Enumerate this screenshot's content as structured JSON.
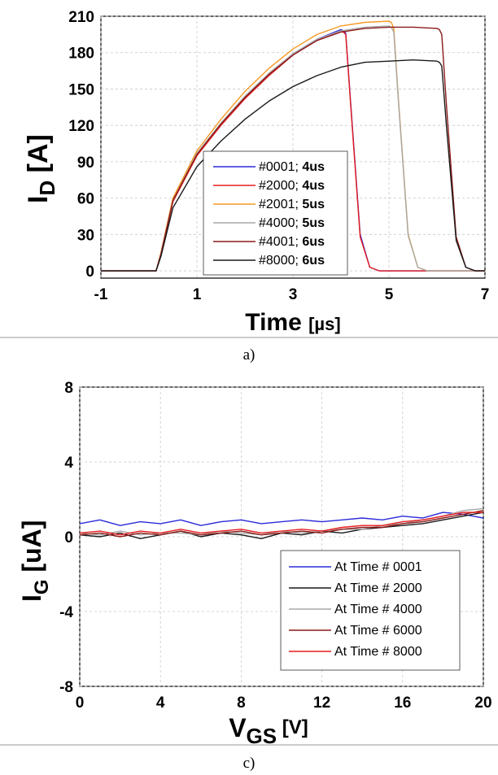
{
  "panel_a": {
    "caption": "a)",
    "ylabel_main": "I",
    "ylabel_sub": "D",
    "ylabel_unit": " [A]",
    "xlabel_main": "Time ",
    "xlabel_unit": "[µs]"
  },
  "panel_c": {
    "caption": "c)",
    "ylabel_main": "I",
    "ylabel_sub": "G",
    "ylabel_unit": " [uA]",
    "xlabel_main": "V",
    "xlabel_sub": "GS",
    "xlabel_unit": " [V]"
  },
  "chart_data": [
    {
      "type": "line",
      "panel": "a)",
      "xlabel": "Time [µs]",
      "ylabel": "ID [A]",
      "xlim": [
        -1,
        7
      ],
      "ylim": [
        -6,
        210
      ],
      "xticks": [
        "-1",
        "1",
        "3",
        "5",
        "7"
      ],
      "yticks": [
        "0",
        "30",
        "60",
        "90",
        "120",
        "150",
        "180",
        "210"
      ],
      "grid": true,
      "legend_position": "bottom-center",
      "series": [
        {
          "name": "#0001; ",
          "name_bold": "4us",
          "color": "#2b2bd9",
          "x": [
            -1,
            0.15,
            0.25,
            0.5,
            1.0,
            1.5,
            2.0,
            2.5,
            3.0,
            3.5,
            4.0,
            4.05,
            4.1,
            4.2,
            4.4,
            4.6,
            4.8,
            7
          ],
          "y": [
            0,
            0,
            14,
            58,
            96,
            121,
            143,
            162,
            179,
            191,
            199,
            198,
            196,
            140,
            30,
            3,
            0,
            0
          ]
        },
        {
          "name": "#2000; ",
          "name_bold": "4us",
          "color": "#e81c1c",
          "x": [
            -1,
            0.15,
            0.25,
            0.5,
            1.0,
            1.5,
            2.0,
            2.5,
            3.0,
            3.5,
            4.0,
            4.05,
            4.1,
            4.2,
            4.4,
            4.6,
            4.8,
            7
          ],
          "y": [
            0,
            0,
            13,
            57,
            95,
            120,
            142,
            161,
            178,
            190,
            198,
            197,
            195,
            138,
            28,
            3,
            0,
            0
          ]
        },
        {
          "name": "#2001; ",
          "name_bold": "5us",
          "color": "#f59a23",
          "x": [
            -1,
            0.15,
            0.25,
            0.5,
            1.0,
            1.5,
            2.0,
            2.5,
            3.0,
            3.5,
            4.0,
            4.5,
            5.0,
            5.05,
            5.1,
            5.2,
            5.4,
            5.6,
            5.8,
            7
          ],
          "y": [
            0,
            0,
            15,
            60,
            99,
            125,
            148,
            167,
            183,
            195,
            202,
            205,
            206,
            205,
            200,
            140,
            30,
            3,
            0,
            0
          ]
        },
        {
          "name": "#4000; ",
          "name_bold": "5us",
          "color": "#a8a8a8",
          "x": [
            -1,
            0.15,
            0.25,
            0.5,
            1.0,
            1.5,
            2.0,
            2.5,
            3.0,
            3.5,
            4.0,
            4.5,
            5.0,
            5.05,
            5.1,
            5.2,
            5.4,
            5.6,
            5.8,
            7
          ],
          "y": [
            0,
            0,
            14,
            58,
            97,
            122,
            144,
            163,
            179,
            191,
            198,
            201,
            202,
            201,
            197,
            138,
            29,
            3,
            0,
            0
          ]
        },
        {
          "name": "#4001; ",
          "name_bold": "6us",
          "color": "#8b1a1a",
          "x": [
            -1,
            0.15,
            0.25,
            0.5,
            1.0,
            1.5,
            2.0,
            2.5,
            3.0,
            3.5,
            4.0,
            4.5,
            5.0,
            5.5,
            6.0,
            6.05,
            6.1,
            6.2,
            6.4,
            6.6,
            6.8,
            7
          ],
          "y": [
            0,
            0,
            14,
            58,
            96,
            121,
            143,
            162,
            178,
            190,
            197,
            200,
            201,
            201,
            200,
            199,
            195,
            135,
            28,
            3,
            0,
            0
          ]
        },
        {
          "name": "#8000; ",
          "name_bold": "6us",
          "color": "#1a1a1a",
          "x": [
            -1,
            0.15,
            0.25,
            0.5,
            1.0,
            1.5,
            2.0,
            2.5,
            3.0,
            3.5,
            4.0,
            4.5,
            5.0,
            5.5,
            6.0,
            6.05,
            6.1,
            6.2,
            6.4,
            6.6,
            6.8,
            7
          ],
          "y": [
            0,
            0,
            12,
            52,
            86,
            107,
            125,
            140,
            152,
            161,
            168,
            172,
            173,
            174,
            173,
            172,
            169,
            118,
            25,
            3,
            0,
            0
          ]
        }
      ]
    },
    {
      "type": "line",
      "panel": "c)",
      "xlabel": "VGS [V]",
      "ylabel": "IG [uA]",
      "xlim": [
        0,
        20
      ],
      "ylim": [
        -8,
        8
      ],
      "xticks": [
        "0",
        "4",
        "8",
        "12",
        "16",
        "20"
      ],
      "yticks": [
        "-8",
        "-4",
        "0",
        "4",
        "8"
      ],
      "grid": true,
      "legend_position": "bottom-right",
      "series": [
        {
          "name": "At Time # 0001",
          "color": "#2b2bd9",
          "x": [
            0,
            1,
            2,
            3,
            4,
            5,
            6,
            7,
            8,
            9,
            10,
            11,
            12,
            13,
            14,
            15,
            16,
            17,
            18,
            19,
            20
          ],
          "y": [
            0.7,
            0.9,
            0.6,
            0.8,
            0.7,
            0.9,
            0.6,
            0.8,
            0.9,
            0.7,
            0.8,
            0.9,
            0.8,
            0.9,
            1.0,
            0.9,
            1.1,
            1.0,
            1.3,
            1.2,
            1.0
          ]
        },
        {
          "name": "At Time # 2000",
          "color": "#1a1a1a",
          "x": [
            0,
            1,
            2,
            3,
            4,
            5,
            6,
            7,
            8,
            9,
            10,
            11,
            12,
            13,
            14,
            15,
            16,
            17,
            18,
            19,
            20
          ],
          "y": [
            0.1,
            0.0,
            0.2,
            -0.1,
            0.1,
            0.3,
            0.0,
            0.2,
            0.1,
            -0.1,
            0.2,
            0.1,
            0.3,
            0.2,
            0.4,
            0.5,
            0.6,
            0.7,
            0.9,
            1.1,
            1.3
          ]
        },
        {
          "name": "At Time # 4000",
          "color": "#a8a8a8",
          "x": [
            0,
            1,
            2,
            3,
            4,
            5,
            6,
            7,
            8,
            9,
            10,
            11,
            12,
            13,
            14,
            15,
            16,
            17,
            18,
            19,
            20
          ],
          "y": [
            0.2,
            0.1,
            0.3,
            0.1,
            0.2,
            0.2,
            0.1,
            0.3,
            0.2,
            0.1,
            0.3,
            0.2,
            0.3,
            0.4,
            0.4,
            0.6,
            0.7,
            0.9,
            1.1,
            1.4,
            1.5
          ]
        },
        {
          "name": "At Time # 6000",
          "color": "#8b1a1a",
          "x": [
            0,
            1,
            2,
            3,
            4,
            5,
            6,
            7,
            8,
            9,
            10,
            11,
            12,
            13,
            14,
            15,
            16,
            17,
            18,
            19,
            20
          ],
          "y": [
            0.1,
            0.2,
            0.0,
            0.2,
            0.1,
            0.3,
            0.1,
            0.2,
            0.3,
            0.1,
            0.2,
            0.3,
            0.2,
            0.4,
            0.5,
            0.5,
            0.7,
            0.8,
            1.0,
            1.2,
            1.4
          ]
        },
        {
          "name": "At Time # 8000",
          "color": "#e81c1c",
          "x": [
            0,
            1,
            2,
            3,
            4,
            5,
            6,
            7,
            8,
            9,
            10,
            11,
            12,
            13,
            14,
            15,
            16,
            17,
            18,
            19,
            20
          ],
          "y": [
            0.2,
            0.3,
            0.1,
            0.3,
            0.2,
            0.4,
            0.2,
            0.3,
            0.4,
            0.2,
            0.3,
            0.4,
            0.3,
            0.5,
            0.6,
            0.6,
            0.8,
            0.9,
            1.1,
            1.3,
            1.3
          ]
        }
      ]
    }
  ]
}
